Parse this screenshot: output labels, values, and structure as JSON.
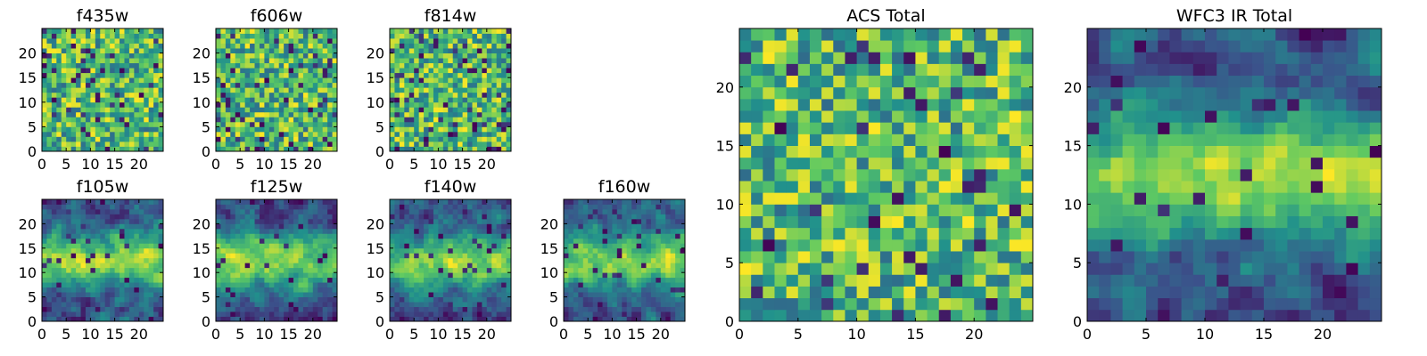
{
  "figure": {
    "panels_note": "",
    "colormap": [
      "#440154",
      "#3b528b",
      "#21918c",
      "#5ec962",
      "#fde725"
    ]
  },
  "chart_data": [
    {
      "type": "heatmap",
      "title": "f435w",
      "grid": [
        25,
        25
      ],
      "xlim": [
        0,
        25
      ],
      "ylim": [
        0,
        25
      ],
      "xticks": [
        0,
        5,
        10,
        15,
        20
      ],
      "yticks": [
        0,
        5,
        10,
        15,
        20
      ],
      "pattern": "noise",
      "seed": 11,
      "darkness": 0.07
    },
    {
      "type": "heatmap",
      "title": "f606w",
      "grid": [
        25,
        25
      ],
      "xlim": [
        0,
        25
      ],
      "ylim": [
        0,
        25
      ],
      "xticks": [
        0,
        5,
        10,
        15,
        20
      ],
      "yticks": [
        0,
        5,
        10,
        15,
        20
      ],
      "pattern": "noise",
      "seed": 23,
      "darkness": 0.08
    },
    {
      "type": "heatmap",
      "title": "f814w",
      "grid": [
        25,
        25
      ],
      "xlim": [
        0,
        25
      ],
      "ylim": [
        0,
        25
      ],
      "xticks": [
        0,
        5,
        10,
        15,
        20
      ],
      "yticks": [
        0,
        5,
        10,
        15,
        20
      ],
      "pattern": "noise",
      "seed": 37,
      "darkness": 0.07
    },
    {
      "type": "heatmap",
      "title": "f105w",
      "grid": [
        25,
        25
      ],
      "xlim": [
        0,
        25
      ],
      "ylim": [
        0,
        25
      ],
      "xticks": [
        0,
        5,
        10,
        15,
        20
      ],
      "yticks": [
        0,
        5,
        10,
        15,
        20
      ],
      "pattern": "band",
      "seed": 41,
      "darkness": 0.05
    },
    {
      "type": "heatmap",
      "title": "f125w",
      "grid": [
        25,
        25
      ],
      "xlim": [
        0,
        25
      ],
      "ylim": [
        0,
        25
      ],
      "xticks": [
        0,
        5,
        10,
        15,
        20
      ],
      "yticks": [
        0,
        5,
        10,
        15,
        20
      ],
      "pattern": "band",
      "seed": 53,
      "darkness": 0.05
    },
    {
      "type": "heatmap",
      "title": "f140w",
      "grid": [
        25,
        25
      ],
      "xlim": [
        0,
        25
      ],
      "ylim": [
        0,
        25
      ],
      "xticks": [
        0,
        5,
        10,
        15,
        20
      ],
      "yticks": [
        0,
        5,
        10,
        15,
        20
      ],
      "pattern": "band",
      "seed": 67,
      "darkness": 0.05
    },
    {
      "type": "heatmap",
      "title": "f160w",
      "grid": [
        25,
        25
      ],
      "xlim": [
        0,
        25
      ],
      "ylim": [
        0,
        25
      ],
      "xticks": [
        0,
        5,
        10,
        15,
        20
      ],
      "yticks": [
        0,
        5,
        10,
        15,
        20
      ],
      "pattern": "band",
      "seed": 79,
      "darkness": 0.05
    },
    {
      "type": "heatmap",
      "title": "ACS Total",
      "grid": [
        25,
        25
      ],
      "xlim": [
        0,
        25
      ],
      "ylim": [
        0,
        25
      ],
      "xticks": [
        0,
        5,
        10,
        15,
        20
      ],
      "yticks": [
        0,
        5,
        10,
        15,
        20
      ],
      "pattern": "noise",
      "seed": 97,
      "darkness": 0.04
    },
    {
      "type": "heatmap",
      "title": "WFC3 IR Total",
      "grid": [
        25,
        25
      ],
      "xlim": [
        0,
        25
      ],
      "ylim": [
        0,
        25
      ],
      "xticks": [
        0,
        5,
        10,
        15,
        20
      ],
      "yticks": [
        0,
        5,
        10,
        15,
        20
      ],
      "pattern": "band",
      "seed": 113,
      "darkness": 0.03
    }
  ]
}
